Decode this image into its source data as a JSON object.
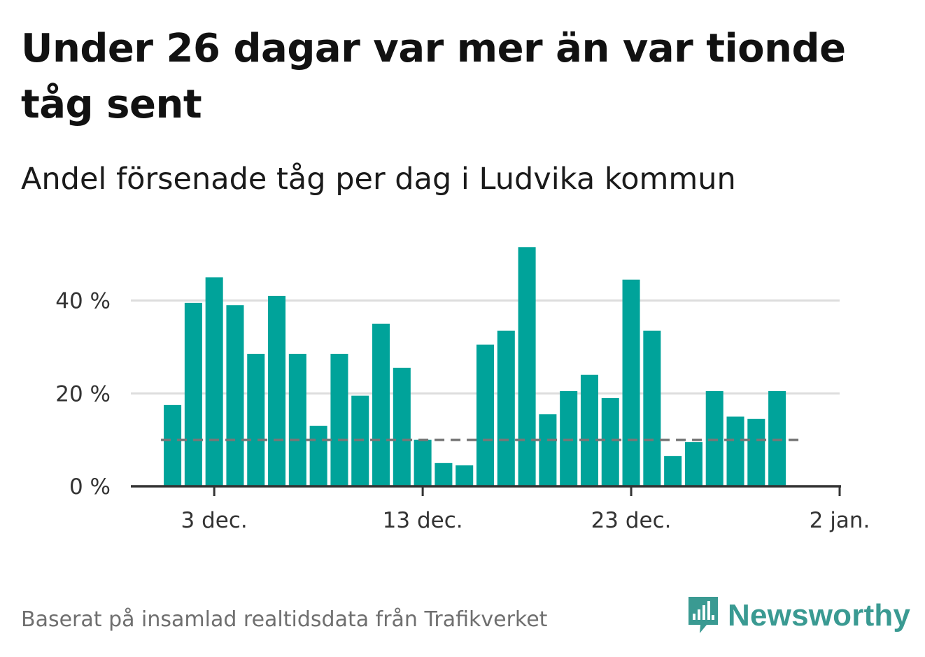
{
  "title": "Under 26 dagar var mer än var tionde tåg sent",
  "subtitle": "Andel försenade tåg per dag i Ludvika kommun",
  "source": "Baserat på insamlad realtidsdata från Trafikverket",
  "brand": {
    "name": "Newsworthy",
    "icon": "newsworthy-bar-chart-logo-icon",
    "color": "#3a9a92"
  },
  "colors": {
    "bar": "#00a39a",
    "reference_line": "#777777",
    "grid": "#dddddd",
    "axis": "#333333"
  },
  "chart_data": {
    "type": "bar",
    "title": "Under 26 dagar var mer än var tionde tåg sent",
    "subtitle": "Andel försenade tåg per dag i Ludvika kommun",
    "x": [
      "2023-12-01",
      "2023-12-02",
      "2023-12-03",
      "2023-12-04",
      "2023-12-05",
      "2023-12-06",
      "2023-12-07",
      "2023-12-08",
      "2023-12-09",
      "2023-12-10",
      "2023-12-11",
      "2023-12-12",
      "2023-12-13",
      "2023-12-14",
      "2023-12-15",
      "2023-12-16",
      "2023-12-17",
      "2023-12-18",
      "2023-12-19",
      "2023-12-20",
      "2023-12-21",
      "2023-12-22",
      "2023-12-23",
      "2023-12-24",
      "2023-12-25",
      "2023-12-26",
      "2023-12-27",
      "2023-12-28",
      "2023-12-29",
      "2023-12-30"
    ],
    "series": [
      {
        "values": [
          17.5,
          39.5,
          45.0,
          39.0,
          28.5,
          41.0,
          28.5,
          13.0,
          28.5,
          19.5,
          35.0,
          25.5,
          10.0,
          5.0,
          4.5,
          30.5,
          33.5,
          51.5,
          15.5,
          20.5,
          24.0,
          19.0,
          44.5,
          33.5,
          6.5,
          9.5,
          20.5,
          15.0,
          14.5,
          20.5
        ]
      }
    ],
    "reference_line": {
      "value": 10,
      "style": "dashed"
    },
    "yticks": [
      0,
      20,
      40
    ],
    "ytick_labels": [
      "0 %",
      "20 %",
      "40 %"
    ],
    "ylim": [
      0,
      55
    ],
    "xticks": [
      "2023-12-03",
      "2023-12-13",
      "2023-12-23",
      "2024-01-02"
    ],
    "xtick_labels": [
      "3 dec.",
      "13 dec.",
      "23 dec.",
      "2 jan."
    ],
    "xlim": [
      "2023-11-29",
      "2024-01-02"
    ],
    "grid": true,
    "legend": "none"
  }
}
